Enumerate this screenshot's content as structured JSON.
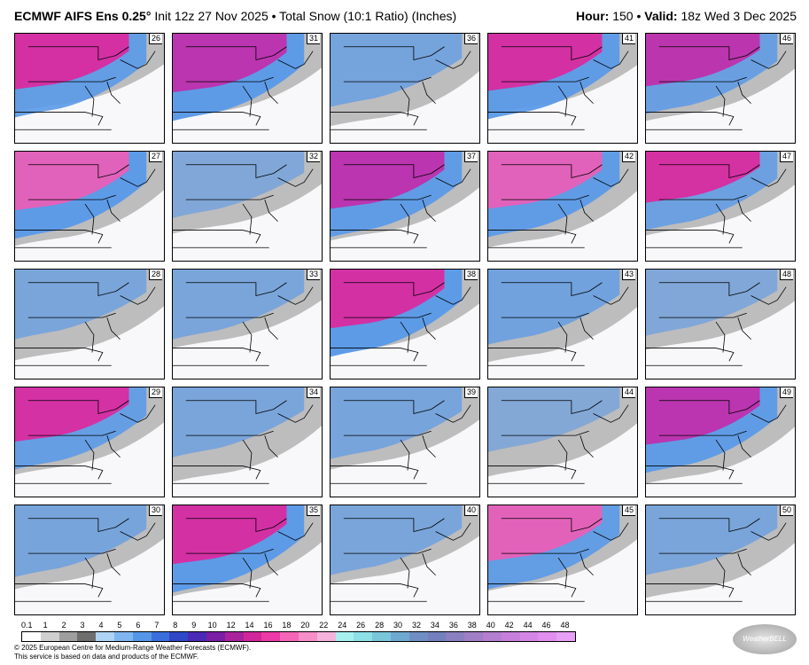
{
  "header": {
    "title": "ECMWF AIFS Ens 0.25°",
    "subtitle": "Init 12z 27 Nov 2025 • Total Snow (10:1 Ratio) (Inches)",
    "hour_label": "Hour:",
    "hour_value": "150",
    "valid_label": "Valid:",
    "valid_value": "18z Wed 3 Dec 2025"
  },
  "panels": [
    {
      "member": "26",
      "level": 0.85
    },
    {
      "member": "31",
      "level": 0.95
    },
    {
      "member": "36",
      "level": 0.55
    },
    {
      "member": "41",
      "level": 0.9
    },
    {
      "member": "46",
      "level": 0.75
    },
    {
      "member": "27",
      "level": 0.95
    },
    {
      "member": "32",
      "level": 0.35
    },
    {
      "member": "37",
      "level": 0.9
    },
    {
      "member": "42",
      "level": 0.9
    },
    {
      "member": "47",
      "level": 0.7
    },
    {
      "member": "28",
      "level": 0.45
    },
    {
      "member": "33",
      "level": 0.45
    },
    {
      "member": "38",
      "level": 0.95
    },
    {
      "member": "43",
      "level": 0.6
    },
    {
      "member": "48",
      "level": 0.35
    },
    {
      "member": "29",
      "level": 0.8
    },
    {
      "member": "34",
      "level": 0.45
    },
    {
      "member": "39",
      "level": 0.5
    },
    {
      "member": "44",
      "level": 0.3
    },
    {
      "member": "49",
      "level": 0.9
    },
    {
      "member": "30",
      "level": 0.5
    },
    {
      "member": "35",
      "level": 0.95
    },
    {
      "member": "40",
      "level": 0.45
    },
    {
      "member": "45",
      "level": 0.85
    },
    {
      "member": "50",
      "level": 0.45
    }
  ],
  "colorbar": {
    "ticks": [
      "0.1",
      "1",
      "2",
      "3",
      "4",
      "5",
      "6",
      "7",
      "8",
      "9",
      "10",
      "12",
      "14",
      "16",
      "18",
      "20",
      "22",
      "24",
      "26",
      "28",
      "30",
      "32",
      "34",
      "36",
      "38",
      "40",
      "42",
      "44",
      "46",
      "48"
    ],
    "colors": [
      "#ffffff",
      "#cfcfcf",
      "#9e9e9e",
      "#6e6e6e",
      "#aed3f5",
      "#7fb6f0",
      "#5596e8",
      "#3a6fdb",
      "#2f48c8",
      "#4b2ab5",
      "#7a1fa6",
      "#a8229c",
      "#d0279a",
      "#ec3ba6",
      "#f566b8",
      "#f58ec9",
      "#f4b3db",
      "#a7f0f0",
      "#8ce0e6",
      "#79c6db",
      "#6fa9d0",
      "#6f8fc4",
      "#7480bd",
      "#8a7fc0",
      "#a07fc7",
      "#b47fd0",
      "#c67fdb",
      "#d585e6",
      "#e08eef",
      "#e6a0f5"
    ]
  },
  "footer": {
    "line1": "© 2025 European Centre for Medium-Range Weather Forecasts (ECMWF).",
    "line2": "This service is based on data and products of the ECMWF."
  },
  "logo_text": "WeatherBELL"
}
